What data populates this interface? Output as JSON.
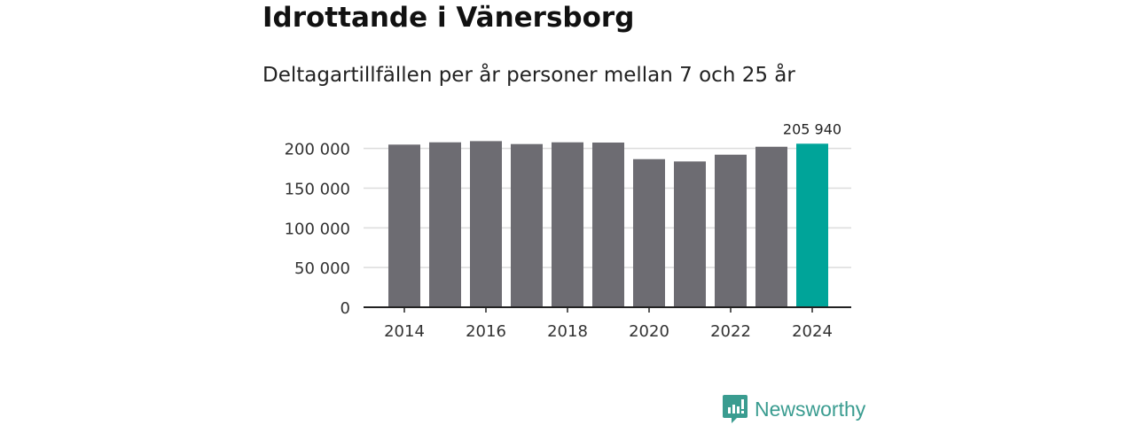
{
  "title": "Idrottande i Vänersborg",
  "subtitle": "Deltagartillfällen per år personer mellan 7 och 25 år",
  "brand": "Newsworthy",
  "colors": {
    "bar": "#6d6c72",
    "highlight": "#00a499",
    "brand": "#3a9c90"
  },
  "chart_data": {
    "type": "bar",
    "title": "Idrottande i Vänersborg",
    "subtitle": "Deltagartillfällen per år personer mellan 7 och 25 år",
    "xlabel": "",
    "ylabel": "",
    "categories": [
      2014,
      2015,
      2016,
      2017,
      2018,
      2019,
      2020,
      2021,
      2022,
      2023,
      2024
    ],
    "values": [
      204800,
      207700,
      209200,
      205500,
      207700,
      207400,
      186500,
      183600,
      192100,
      202100,
      205940
    ],
    "highlight_index": 10,
    "data_label": "205 940",
    "ylim": [
      0,
      210000
    ],
    "yticks": [
      0,
      50000,
      100000,
      150000,
      200000
    ],
    "ytick_labels": [
      "0",
      "50 000",
      "100 000",
      "150 000",
      "200 000"
    ],
    "xtick_labels": [
      "2014",
      "2016",
      "2018",
      "2020",
      "2022",
      "2024"
    ],
    "grid": true
  }
}
